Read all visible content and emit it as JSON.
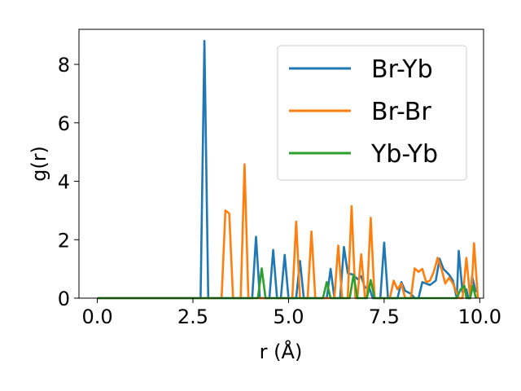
{
  "chart_data": {
    "type": "line",
    "xlabel": "r (Å)",
    "ylabel": "g(r)",
    "xlim": [
      -0.48,
      10.1
    ],
    "ylim": [
      0,
      9.2
    ],
    "xticks": [
      0.0,
      2.5,
      5.0,
      7.5,
      10.0
    ],
    "xtick_labels": [
      "0.0",
      "2.5",
      "5.0",
      "7.5",
      "10.0"
    ],
    "yticks": [
      0,
      2,
      4,
      6,
      8
    ],
    "ytick_labels": [
      "0",
      "2",
      "4",
      "6",
      "8"
    ],
    "grid": false,
    "legend_position": "top-right",
    "series": [
      {
        "name": "Br-Yb",
        "color": "#1f77b4",
        "points": [
          [
            0,
            0
          ],
          [
            2.7,
            0
          ],
          [
            2.8,
            8.8
          ],
          [
            2.9,
            0
          ],
          [
            4.05,
            0
          ],
          [
            4.15,
            2.1
          ],
          [
            4.25,
            0
          ],
          [
            4.5,
            0
          ],
          [
            4.6,
            1.65
          ],
          [
            4.7,
            0
          ],
          [
            4.8,
            0
          ],
          [
            4.9,
            1.48
          ],
          [
            5.0,
            0
          ],
          [
            5.2,
            0
          ],
          [
            5.3,
            1.27
          ],
          [
            5.4,
            0
          ],
          [
            6.0,
            0
          ],
          [
            6.1,
            1.0
          ],
          [
            6.2,
            0
          ],
          [
            6.35,
            0
          ],
          [
            6.45,
            1.75
          ],
          [
            6.55,
            0.85
          ],
          [
            6.7,
            0.8
          ],
          [
            6.8,
            0.65
          ],
          [
            6.9,
            0.75
          ],
          [
            7.0,
            0.35
          ],
          [
            7.1,
            0.4
          ],
          [
            7.2,
            0
          ],
          [
            7.4,
            0
          ],
          [
            7.5,
            1.9
          ],
          [
            7.6,
            0
          ],
          [
            7.85,
            0
          ],
          [
            7.95,
            0.55
          ],
          [
            8.05,
            0.25
          ],
          [
            8.2,
            0.15
          ],
          [
            8.3,
            0
          ],
          [
            8.4,
            0
          ],
          [
            8.5,
            0.55
          ],
          [
            8.6,
            0.5
          ],
          [
            8.7,
            0.45
          ],
          [
            8.85,
            0.6
          ],
          [
            8.95,
            1.35
          ],
          [
            9.05,
            1.0
          ],
          [
            9.2,
            0.8
          ],
          [
            9.3,
            0.6
          ],
          [
            9.4,
            0
          ],
          [
            9.45,
            1.62
          ],
          [
            9.55,
            0.2
          ],
          [
            9.65,
            0.3
          ],
          [
            9.7,
            0
          ],
          [
            9.75,
            0
          ],
          [
            9.8,
            0.75
          ],
          [
            9.9,
            0.2
          ]
        ]
      },
      {
        "name": "Br-Br",
        "color": "#ff7f0e",
        "points": [
          [
            0,
            0
          ],
          [
            3.25,
            0
          ],
          [
            3.35,
            3.0
          ],
          [
            3.45,
            2.9
          ],
          [
            3.55,
            0
          ],
          [
            3.75,
            0
          ],
          [
            3.85,
            4.58
          ],
          [
            3.95,
            0
          ],
          [
            5.1,
            0
          ],
          [
            5.2,
            2.62
          ],
          [
            5.3,
            0
          ],
          [
            5.5,
            0
          ],
          [
            5.6,
            2.28
          ],
          [
            5.7,
            0
          ],
          [
            6.2,
            0
          ],
          [
            6.3,
            1.8
          ],
          [
            6.4,
            0
          ],
          [
            6.55,
            0
          ],
          [
            6.65,
            3.15
          ],
          [
            6.75,
            0
          ],
          [
            6.8,
            0
          ],
          [
            6.9,
            1.5
          ],
          [
            7.0,
            0
          ],
          [
            7.05,
            0
          ],
          [
            7.15,
            2.75
          ],
          [
            7.25,
            0
          ],
          [
            7.65,
            0
          ],
          [
            7.75,
            0.6
          ],
          [
            7.85,
            0.3
          ],
          [
            7.95,
            0.5
          ],
          [
            8.05,
            0
          ],
          [
            8.2,
            0
          ],
          [
            8.3,
            1.02
          ],
          [
            8.4,
            0.9
          ],
          [
            8.5,
            1.0
          ],
          [
            8.6,
            0.55
          ],
          [
            8.7,
            0.6
          ],
          [
            8.8,
            0.9
          ],
          [
            8.9,
            1.38
          ],
          [
            9.0,
            1.0
          ],
          [
            9.1,
            0.5
          ],
          [
            9.2,
            0.7
          ],
          [
            9.3,
            0.5
          ],
          [
            9.45,
            0
          ],
          [
            9.55,
            0
          ],
          [
            9.65,
            1.38
          ],
          [
            9.75,
            0
          ],
          [
            9.8,
            0.6
          ],
          [
            9.85,
            1.88
          ],
          [
            9.95,
            0
          ]
        ]
      },
      {
        "name": "Yb-Yb",
        "color": "#2ca02c",
        "points": [
          [
            0,
            0
          ],
          [
            4.2,
            0
          ],
          [
            4.3,
            1.02
          ],
          [
            4.4,
            0
          ],
          [
            5.9,
            0
          ],
          [
            6.0,
            0.55
          ],
          [
            6.1,
            0
          ],
          [
            6.6,
            0
          ],
          [
            6.7,
            0.8
          ],
          [
            6.8,
            0
          ],
          [
            7.05,
            0
          ],
          [
            7.15,
            0.62
          ],
          [
            7.25,
            0
          ],
          [
            9.4,
            0
          ],
          [
            9.5,
            0.3
          ],
          [
            9.6,
            0.42
          ],
          [
            9.65,
            0
          ],
          [
            9.75,
            0
          ],
          [
            9.82,
            0.42
          ],
          [
            9.9,
            0
          ]
        ]
      }
    ]
  }
}
